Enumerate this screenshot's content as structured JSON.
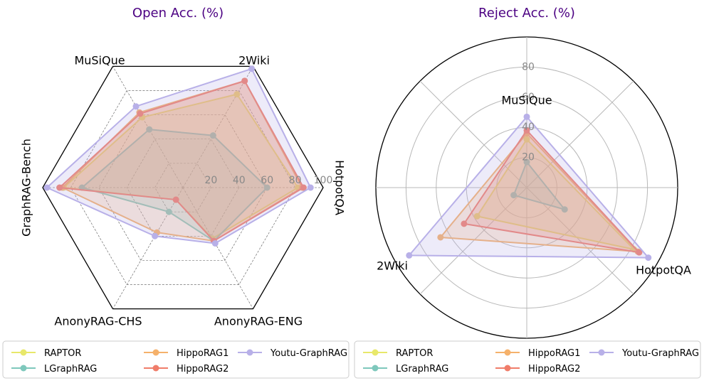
{
  "chart_data": [
    {
      "type": "radar",
      "title": "Open Acc. (%)",
      "axes": [
        "HotpotQA",
        "2Wiki",
        "MuSiQue",
        "GraphRAG-Bench",
        "AnonyRAG-CHS",
        "AnonyRAG-ENG"
      ],
      "rlim": [
        0,
        100
      ],
      "ticks": [
        20,
        40,
        60,
        80,
        100
      ],
      "series": [
        {
          "name": "RAPTOR",
          "color": "#e8e86a",
          "values": [
            82,
            77,
            58,
            85,
            10,
            42
          ]
        },
        {
          "name": "LGraphRAG",
          "color": "#7ec8bc",
          "values": [
            60,
            43,
            48,
            72,
            20,
            44
          ]
        },
        {
          "name": "HippoRAG1",
          "color": "#f5b16b",
          "values": [
            85,
            88,
            62,
            86,
            37,
            44
          ]
        },
        {
          "name": "HippoRAG2",
          "color": "#f07d6a",
          "values": [
            86,
            88,
            61,
            88,
            10,
            44
          ]
        },
        {
          "name": "Youtu-GraphRAG",
          "color": "#b8b0e8",
          "values": [
            91,
            98,
            67,
            97,
            40,
            46
          ]
        }
      ]
    },
    {
      "type": "radar",
      "title": "Reject Acc. (%)",
      "axes": [
        "MuSiQue",
        "2Wiki",
        "HotpotQA"
      ],
      "rlim": [
        0,
        100
      ],
      "ticks": [
        20,
        40,
        60,
        80
      ],
      "series": [
        {
          "name": "RAPTOR",
          "color": "#e8e86a",
          "values": [
            32,
            38,
            82
          ]
        },
        {
          "name": "LGraphRAG",
          "color": "#7ec8bc",
          "values": [
            17,
            10,
            29
          ]
        },
        {
          "name": "HippoRAG1",
          "color": "#f5b16b",
          "values": [
            36,
            66,
            85
          ]
        },
        {
          "name": "HippoRAG2",
          "color": "#f07d6a",
          "values": [
            38,
            48,
            86
          ]
        },
        {
          "name": "Youtu-GraphRAG",
          "color": "#b8b0e8",
          "values": [
            47,
            90,
            93
          ]
        }
      ]
    }
  ],
  "legend": [
    "RAPTOR",
    "HippoRAG1",
    "Youtu-GraphRAG",
    "LGraphRAG",
    "HippoRAG2"
  ]
}
